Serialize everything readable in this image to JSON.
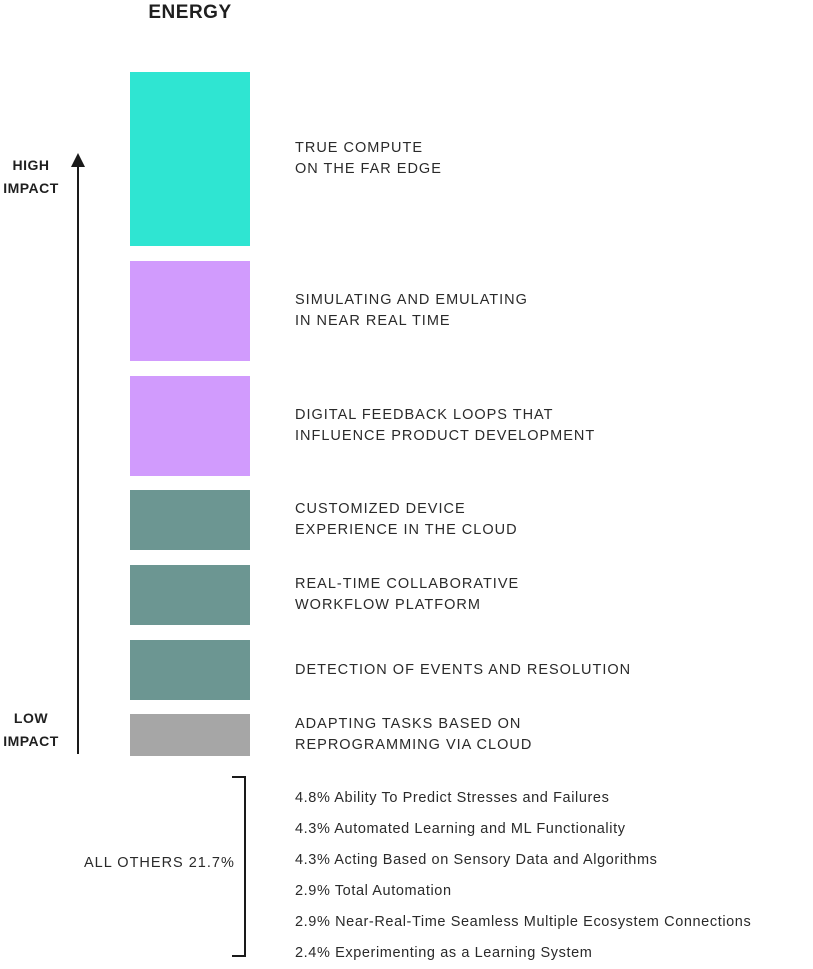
{
  "title": "ENERGY",
  "axis": {
    "high_label": [
      "HIGH",
      "IMPACT"
    ],
    "low_label": [
      "LOW",
      "IMPACT"
    ]
  },
  "blocks": [
    {
      "label": [
        "TRUE COMPUTE",
        "ON THE FAR EDGE"
      ],
      "color": "#2FE5D2"
    },
    {
      "label": [
        "SIMULATING AND EMULATING",
        "IN NEAR REAL TIME"
      ],
      "color": "#D19BFD"
    },
    {
      "label": [
        "DIGITAL FEEDBACK LOOPS THAT",
        "INFLUENCE PRODUCT DEVELOPMENT"
      ],
      "color": "#D19BFD"
    },
    {
      "label": [
        "CUSTOMIZED DEVICE",
        "EXPERIENCE IN THE CLOUD"
      ],
      "color": "#6C9692"
    },
    {
      "label": [
        "REAL-TIME COLLABORATIVE",
        "WORKFLOW PLATFORM"
      ],
      "color": "#6C9692"
    },
    {
      "label": [
        "DETECTION OF EVENTS AND RESOLUTION"
      ],
      "color": "#6C9692"
    },
    {
      "label": [
        "ADAPTING TASKS BASED ON",
        "REPROGRAMMING VIA CLOUD"
      ],
      "color": "#A6A6A6"
    }
  ],
  "others": {
    "total_label": "ALL OTHERS 21.7%",
    "items": [
      "4.8% Ability To Predict Stresses and Failures",
      "4.3% Automated Learning and ML Functionality",
      "4.3% Acting Based on Sensory Data and Algorithms",
      "2.9% Total Automation",
      "2.9% Near-Real-Time Seamless Multiple Ecosystem Connections",
      "2.4% Experimenting as a Learning System"
    ]
  }
}
